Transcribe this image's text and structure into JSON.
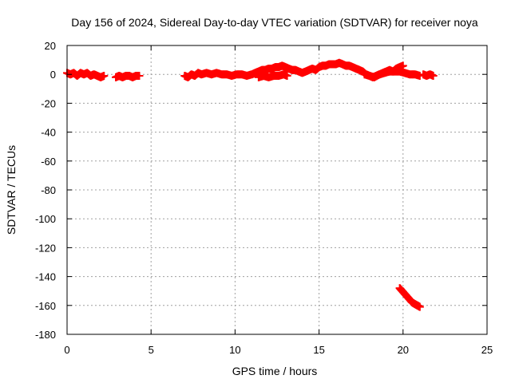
{
  "chart_data": {
    "type": "scatter",
    "title": "Day 156 of 2024, Sidereal Day-to-day VTEC variation (SDTVAR) for receiver noya",
    "xlabel": "GPS time / hours",
    "ylabel": "SDTVAR / TECUs",
    "xlim": [
      0,
      25
    ],
    "ylim": [
      -180,
      20
    ],
    "x_ticks": [
      0,
      5,
      10,
      15,
      20,
      25
    ],
    "y_ticks": [
      20,
      0,
      -20,
      -40,
      -60,
      -80,
      -100,
      -120,
      -140,
      -160,
      -180
    ],
    "x_tick_labels": [
      "0",
      "5",
      "10",
      "15",
      "20",
      "25"
    ],
    "y_tick_labels": [
      "20",
      "0",
      "-20",
      "-40",
      "-60",
      "-80",
      "-100",
      "-120",
      "-140",
      "-160",
      "-180"
    ],
    "grid": true,
    "marker": "plus",
    "series": [
      {
        "name": "SDTVAR",
        "color": "#ff0000",
        "segments": [
          {
            "x": [
              0.0,
              0.2,
              0.4,
              0.6,
              0.8,
              1.0,
              1.2,
              1.4,
              1.6,
              1.8,
              2.0,
              2.2
            ],
            "y": [
              1,
              0,
              1,
              -1,
              1,
              0,
              1,
              -1,
              0,
              -1,
              -2,
              -1
            ]
          },
          {
            "x": [
              2.9,
              3.1,
              3.3,
              3.5,
              3.7,
              3.9,
              4.1,
              4.3
            ],
            "y": [
              -2,
              -1,
              -2,
              -1,
              -1,
              -2,
              -1,
              -1
            ]
          },
          {
            "x": [
              7.0,
              7.2,
              7.4,
              7.6,
              7.8,
              8.0,
              8.3,
              8.6,
              8.9,
              9.2,
              9.5,
              9.8,
              10.1,
              10.4,
              10.7,
              11.0,
              11.2,
              11.4,
              11.6,
              11.8,
              12.0,
              12.2,
              12.4,
              12.6,
              12.8,
              13.0,
              13.2,
              13.4,
              13.6,
              13.8,
              14.0,
              14.2,
              14.4,
              14.6,
              14.8,
              15.0,
              15.2,
              15.4,
              15.6,
              15.8,
              16.0,
              16.2,
              16.4,
              16.6,
              16.8,
              17.0,
              17.2,
              17.4,
              17.6,
              17.8,
              18.0,
              18.2,
              18.4,
              18.6,
              18.8,
              19.0,
              19.2,
              19.4,
              19.6,
              19.8,
              20.0
            ],
            "y": [
              -1,
              -2,
              0,
              -1,
              1,
              0,
              1,
              0,
              1,
              0,
              0,
              -1,
              0,
              0,
              -1,
              0,
              1,
              2,
              3,
              3,
              4,
              4,
              5,
              5,
              6,
              5,
              4,
              3,
              3,
              2,
              1,
              2,
              3,
              4,
              3,
              5,
              6,
              6,
              7,
              7,
              7,
              8,
              7,
              6,
              6,
              5,
              4,
              3,
              2,
              0,
              -1,
              -2,
              -1,
              0,
              1,
              2,
              3,
              2,
              4,
              5,
              6
            ]
          },
          {
            "x": [
              11.4,
              11.7,
              12.0,
              12.3,
              12.6,
              12.9,
              13.1
            ],
            "y": [
              -2,
              -1,
              -2,
              -1,
              -1,
              0,
              -1
            ]
          },
          {
            "x": [
              17.7,
              18.0,
              18.3,
              18.6,
              18.9,
              19.2,
              19.5,
              19.8,
              20.1,
              20.4,
              20.7,
              21.0
            ],
            "y": [
              0,
              -1,
              -2,
              0,
              1,
              2,
              2,
              2,
              1,
              0,
              0,
              -1
            ]
          },
          {
            "x": [
              21.2,
              21.4,
              21.6,
              21.8
            ],
            "y": [
              0,
              -1,
              0,
              -1
            ]
          },
          {
            "x": [
              19.8,
              19.95,
              20.1,
              20.25,
              20.4,
              20.55,
              20.7,
              20.85,
              21.0
            ],
            "y": [
              -148,
              -150,
              -152,
              -154,
              -156,
              -158,
              -159,
              -160,
              -161
            ]
          }
        ]
      }
    ]
  }
}
